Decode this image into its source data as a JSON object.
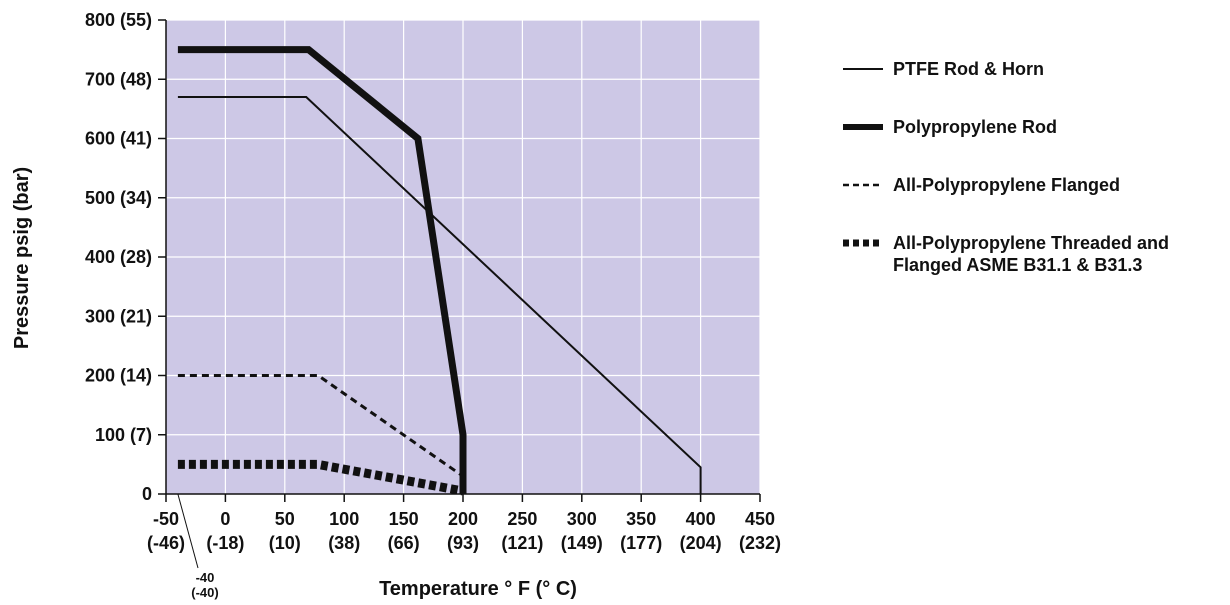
{
  "chart_data": {
    "type": "line",
    "xlabel": "Temperature ° F (° C)",
    "ylabel": "Pressure psig (bar)",
    "xlim": [
      -50,
      450
    ],
    "ylim": [
      0,
      800
    ],
    "grid": true,
    "background_color": "#cdc8e6",
    "legend_position": "right",
    "x_ticks": [
      {
        "value": -50,
        "label_f": "-50",
        "label_c": "(-46)"
      },
      {
        "value": 0,
        "label_f": "0",
        "label_c": "(-18)"
      },
      {
        "value": 50,
        "label_f": "50",
        "label_c": "(10)"
      },
      {
        "value": 100,
        "label_f": "100",
        "label_c": "(38)"
      },
      {
        "value": 150,
        "label_f": "150",
        "label_c": "(66)"
      },
      {
        "value": 200,
        "label_f": "200",
        "label_c": "(93)"
      },
      {
        "value": 250,
        "label_f": "250",
        "label_c": "(121)"
      },
      {
        "value": 300,
        "label_f": "300",
        "label_c": "(149)"
      },
      {
        "value": 350,
        "label_f": "350",
        "label_c": "(177)"
      },
      {
        "value": 400,
        "label_f": "400",
        "label_c": "(204)"
      },
      {
        "value": 450,
        "label_f": "450",
        "label_c": "(232)"
      }
    ],
    "y_ticks": [
      {
        "value": 0,
        "label": "0"
      },
      {
        "value": 100,
        "label": "100 (7)"
      },
      {
        "value": 200,
        "label": "200 (14)"
      },
      {
        "value": 300,
        "label": "300 (21)"
      },
      {
        "value": 400,
        "label": "400 (28)"
      },
      {
        "value": 500,
        "label": "500 (34)"
      },
      {
        "value": 600,
        "label": "600 (41)"
      },
      {
        "value": 700,
        "label": "700 (48)"
      },
      {
        "value": 800,
        "label": "800 (55)"
      }
    ],
    "annotation": {
      "x": -40,
      "label_f": "-40",
      "label_c": "(-40)"
    },
    "series": [
      {
        "name": "PTFE Rod & Horn",
        "style": "thin-solid",
        "points": [
          [
            -40,
            670
          ],
          [
            68,
            670
          ],
          [
            400,
            45
          ],
          [
            400,
            0
          ]
        ]
      },
      {
        "name": "Polypropylene Rod",
        "style": "thick-solid",
        "points": [
          [
            -40,
            750
          ],
          [
            70,
            750
          ],
          [
            162,
            600
          ],
          [
            200,
            100
          ],
          [
            200,
            0
          ]
        ]
      },
      {
        "name": "All-Polypropylene Flanged",
        "style": "thin-dashed",
        "points": [
          [
            -40,
            200
          ],
          [
            78,
            200
          ],
          [
            200,
            30
          ],
          [
            200,
            0
          ]
        ]
      },
      {
        "name": "All-Polypropylene Threaded and Flanged ASME B31.1 & B31.3",
        "style": "thick-dashed",
        "label_lines": [
          "All-Polypropylene Threaded and",
          "Flanged ASME B31.1 & B31.3"
        ],
        "points": [
          [
            -40,
            50
          ],
          [
            78,
            50
          ],
          [
            200,
            5
          ]
        ]
      }
    ]
  }
}
